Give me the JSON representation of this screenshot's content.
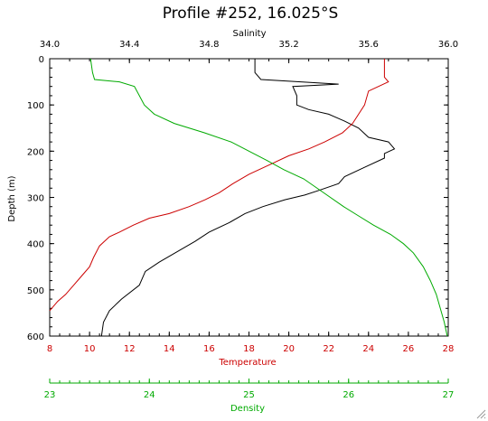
{
  "chart_data": {
    "type": "line",
    "title": "Profile #252, 16.025°S",
    "ylabel": "Depth (m)",
    "ylim": [
      600,
      0
    ],
    "yticks": [
      "0",
      "100",
      "200",
      "300",
      "400",
      "500",
      "600"
    ],
    "axes": {
      "salinity": {
        "label": "Salinity",
        "position": "top",
        "range": [
          34.0,
          36.0
        ],
        "ticks": [
          "34.0",
          "34.4",
          "34.8",
          "35.2",
          "35.6",
          "36.0"
        ],
        "color": "#000000"
      },
      "temperature": {
        "label": "Temperature",
        "position": "bottom",
        "range": [
          8,
          28
        ],
        "ticks": [
          "8",
          "10",
          "12",
          "14",
          "16",
          "18",
          "20",
          "22",
          "24",
          "26",
          "28"
        ],
        "color": "#cc0000"
      },
      "density": {
        "label": "Density",
        "position": "bottom-separate",
        "range": [
          23,
          27
        ],
        "ticks": [
          "23",
          "24",
          "25",
          "26",
          "27"
        ],
        "color": "#00aa00"
      }
    },
    "series": [
      {
        "name": "Salinity",
        "axis": "salinity",
        "color": "#000000",
        "points": [
          [
            35.03,
            0
          ],
          [
            35.03,
            10
          ],
          [
            35.03,
            30
          ],
          [
            35.06,
            45
          ],
          [
            35.26,
            50
          ],
          [
            35.45,
            55
          ],
          [
            35.22,
            60
          ],
          [
            35.24,
            80
          ],
          [
            35.24,
            100
          ],
          [
            35.3,
            110
          ],
          [
            35.4,
            120
          ],
          [
            35.48,
            135
          ],
          [
            35.55,
            150
          ],
          [
            35.6,
            170
          ],
          [
            35.7,
            180
          ],
          [
            35.73,
            195
          ],
          [
            35.68,
            205
          ],
          [
            35.68,
            215
          ],
          [
            35.58,
            235
          ],
          [
            35.48,
            255
          ],
          [
            35.45,
            270
          ],
          [
            35.35,
            285
          ],
          [
            35.28,
            295
          ],
          [
            35.18,
            305
          ],
          [
            35.07,
            320
          ],
          [
            34.98,
            335
          ],
          [
            34.9,
            355
          ],
          [
            34.8,
            375
          ],
          [
            34.73,
            395
          ],
          [
            34.65,
            415
          ],
          [
            34.55,
            440
          ],
          [
            34.48,
            460
          ],
          [
            34.45,
            490
          ],
          [
            34.36,
            520
          ],
          [
            34.3,
            545
          ],
          [
            34.27,
            570
          ],
          [
            34.26,
            600
          ]
        ]
      },
      {
        "name": "Temperature",
        "axis": "temperature",
        "color": "#cc0000",
        "points": [
          [
            24.8,
            0
          ],
          [
            24.8,
            40
          ],
          [
            25.0,
            50
          ],
          [
            24.5,
            60
          ],
          [
            24.0,
            70
          ],
          [
            23.8,
            100
          ],
          [
            23.5,
            120
          ],
          [
            23.2,
            140
          ],
          [
            22.7,
            160
          ],
          [
            21.8,
            180
          ],
          [
            21.0,
            195
          ],
          [
            20.0,
            210
          ],
          [
            19.0,
            230
          ],
          [
            18.0,
            250
          ],
          [
            17.2,
            270
          ],
          [
            16.5,
            290
          ],
          [
            15.8,
            305
          ],
          [
            15.0,
            320
          ],
          [
            14.0,
            335
          ],
          [
            13.0,
            345
          ],
          [
            12.2,
            360
          ],
          [
            11.5,
            375
          ],
          [
            11.0,
            385
          ],
          [
            10.5,
            405
          ],
          [
            10.2,
            430
          ],
          [
            10.0,
            450
          ],
          [
            9.6,
            470
          ],
          [
            9.2,
            490
          ],
          [
            8.8,
            510
          ],
          [
            8.4,
            525
          ],
          [
            8.0,
            545
          ]
        ]
      },
      {
        "name": "Density",
        "axis": "density",
        "color": "#00aa00",
        "points": [
          [
            23.41,
            0
          ],
          [
            23.43,
            30
          ],
          [
            23.45,
            45
          ],
          [
            23.7,
            50
          ],
          [
            23.85,
            60
          ],
          [
            23.9,
            80
          ],
          [
            23.95,
            100
          ],
          [
            24.05,
            120
          ],
          [
            24.25,
            140
          ],
          [
            24.55,
            160
          ],
          [
            24.82,
            180
          ],
          [
            25.0,
            200
          ],
          [
            25.18,
            220
          ],
          [
            25.35,
            240
          ],
          [
            25.55,
            260
          ],
          [
            25.75,
            290
          ],
          [
            25.95,
            320
          ],
          [
            26.1,
            340
          ],
          [
            26.25,
            360
          ],
          [
            26.42,
            380
          ],
          [
            26.55,
            400
          ],
          [
            26.65,
            420
          ],
          [
            26.75,
            450
          ],
          [
            26.82,
            480
          ],
          [
            26.88,
            510
          ],
          [
            26.92,
            540
          ],
          [
            26.96,
            570
          ],
          [
            26.99,
            600
          ]
        ]
      }
    ]
  }
}
